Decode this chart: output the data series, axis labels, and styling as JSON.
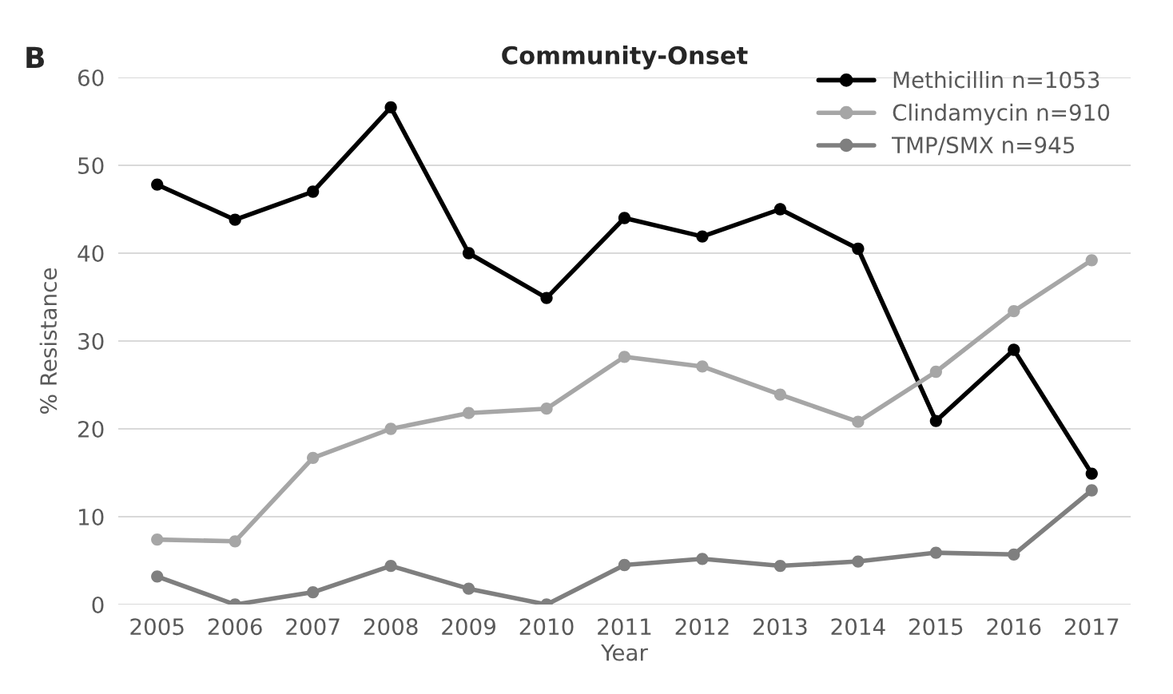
{
  "chart_data": {
    "type": "line",
    "title": "Community-Onset",
    "xlabel": "Year",
    "ylabel": "% Resistance",
    "categories": [
      "2005",
      "2006",
      "2007",
      "2008",
      "2009",
      "2010",
      "2011",
      "2012",
      "2013",
      "2014",
      "2015",
      "2016",
      "2017"
    ],
    "series": [
      {
        "name": "Methicillin n=1053",
        "color": "#000000",
        "values": [
          47.8,
          43.8,
          47,
          56.6,
          40,
          34.9,
          44,
          41.9,
          45,
          40.5,
          20.9,
          29,
          14.9
        ]
      },
      {
        "name": "Clindamycin n=910",
        "color": "#a6a6a6",
        "values": [
          7.4,
          7.2,
          16.7,
          20,
          21.8,
          22.3,
          28.2,
          27.1,
          23.9,
          20.8,
          26.5,
          33.4,
          39.2
        ]
      },
      {
        "name": "TMP/SMX n=945",
        "color": "#7f7f7f",
        "values": [
          3.2,
          0,
          1.4,
          4.4,
          1.8,
          0,
          4.5,
          5.2,
          4.4,
          4.9,
          5.9,
          5.7,
          13
        ]
      }
    ],
    "ylim": [
      0,
      60
    ],
    "yticks": [
      0,
      10,
      20,
      30,
      40,
      50,
      60
    ],
    "grid": "y",
    "legend": "top right",
    "marker": "circle",
    "line_style": "solid",
    "annotations": [
      "B"
    ]
  }
}
